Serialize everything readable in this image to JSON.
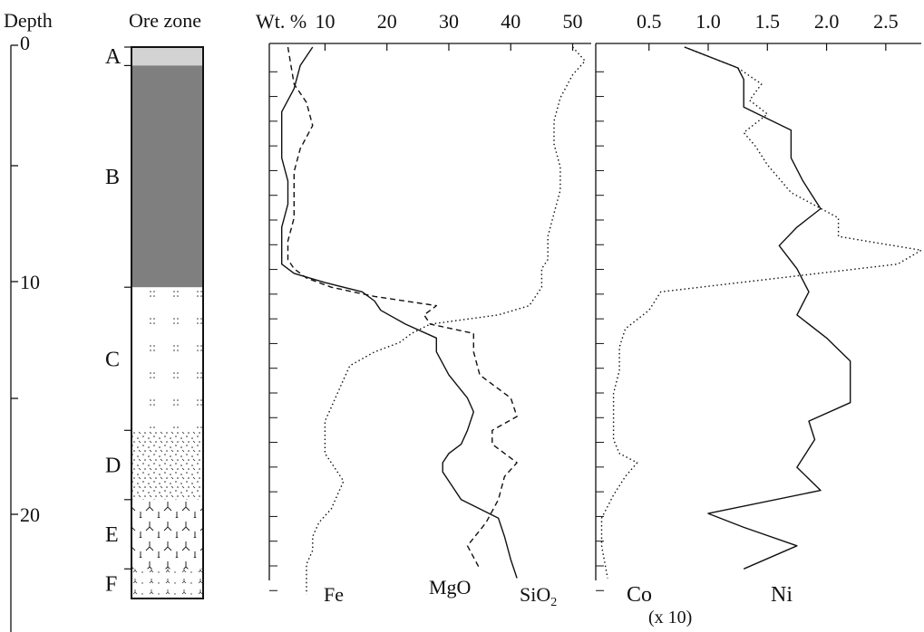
{
  "colors": {
    "ink": "#111111",
    "zone_a": "#d3d3d3",
    "zone_b": "#7f7f80",
    "background": "#ffffff"
  },
  "depth_axis": {
    "title": "Depth",
    "ticks": [
      "0",
      "10",
      "20"
    ]
  },
  "ore_zone": {
    "title": "Ore zone",
    "zones": [
      {
        "label": "A",
        "top": 0,
        "bottom": 0.8,
        "pattern": "light-gray"
      },
      {
        "label": "B",
        "top": 0.8,
        "bottom": 10.4,
        "pattern": "dark-gray"
      },
      {
        "label": "C",
        "top": 10.4,
        "bottom": 16.6,
        "pattern": "sparse-dots"
      },
      {
        "label": "D",
        "top": 16.6,
        "bottom": 19.6,
        "pattern": "dense-dots"
      },
      {
        "label": "E",
        "top": 19.6,
        "bottom": 22.6,
        "pattern": "chevrons"
      },
      {
        "label": "F",
        "top": 22.6,
        "bottom": 23.9,
        "pattern": "small-chevrons"
      }
    ]
  },
  "chart_data": [
    {
      "type": "line",
      "x_label": "Wt. %",
      "x_ticks": [
        "10",
        "20",
        "30",
        "40",
        "50"
      ],
      "xlim": [
        1,
        53
      ],
      "ylim": [
        0,
        23.9
      ],
      "series": [
        {
          "name": "Fe",
          "style": "dotted",
          "x": [
            50,
            52,
            50,
            48,
            47,
            47,
            48,
            48,
            47,
            46,
            46,
            45,
            45,
            45,
            44,
            43,
            38,
            27,
            24,
            22,
            18,
            14,
            13,
            12,
            11,
            10,
            10,
            10,
            10,
            11,
            12,
            13,
            12,
            11,
            9,
            8,
            8,
            7,
            7,
            7
          ],
          "y": [
            0,
            0.6,
            1.2,
            2.2,
            3.2,
            4.2,
            5.2,
            6.2,
            7.2,
            8.2,
            9.2,
            9.6,
            10.0,
            10.4,
            10.8,
            11.2,
            11.6,
            12.0,
            12.4,
            12.8,
            13.2,
            13.8,
            14.4,
            15.0,
            15.6,
            16.2,
            16.8,
            17.2,
            17.6,
            18.0,
            18.4,
            18.8,
            19.4,
            20.0,
            20.6,
            21.2,
            21.8,
            22.4,
            23.0,
            23.7
          ]
        },
        {
          "name": "MgO",
          "style": "dashed",
          "x": [
            4,
            5,
            7,
            8,
            6,
            5,
            5,
            5,
            4,
            4,
            5,
            7,
            11,
            18,
            28,
            26,
            27,
            34,
            34,
            35,
            40,
            41,
            37,
            37,
            41,
            39,
            38,
            36,
            33,
            35
          ],
          "y": [
            0,
            1.6,
            2.4,
            3.4,
            4.4,
            5.4,
            6.4,
            7.4,
            8.4,
            9.2,
            9.6,
            10.0,
            10.4,
            10.8,
            11.2,
            11.6,
            12.0,
            12.4,
            13.2,
            14.2,
            15.2,
            16.0,
            16.6,
            17.2,
            18.0,
            18.6,
            19.6,
            20.6,
            21.6,
            22.6
          ]
        },
        {
          "name": "SiO2",
          "style": "solid",
          "x": [
            8,
            6,
            5,
            3,
            3,
            3,
            4,
            4,
            3,
            3,
            3,
            3,
            5,
            10,
            16,
            18,
            19,
            23,
            28,
            28,
            30,
            33,
            34,
            33,
            32,
            30,
            29,
            29,
            30,
            32,
            38,
            39,
            40,
            41
          ],
          "y": [
            0,
            0.8,
            1.8,
            2.8,
            3.8,
            4.8,
            5.8,
            6.8,
            7.8,
            8.4,
            9.0,
            9.4,
            9.8,
            10.2,
            10.6,
            11.0,
            11.4,
            12.0,
            12.6,
            13.2,
            14.2,
            15.2,
            15.8,
            16.6,
            17.2,
            17.6,
            18.0,
            18.4,
            18.8,
            19.6,
            20.4,
            21.2,
            22.2,
            23.0
          ]
        }
      ]
    },
    {
      "type": "line",
      "x_label": "",
      "x_ticks": [
        "0.5",
        "1.0",
        "1.5",
        "2.0",
        "2.5"
      ],
      "xlim": [
        0.05,
        2.8
      ],
      "ylim": [
        0,
        23.9
      ],
      "series": [
        {
          "name": "Co (x 10)",
          "style": "dotted",
          "x": [
            0.8,
            1.25,
            1.45,
            1.35,
            1.5,
            1.3,
            1.4,
            1.5,
            1.7,
            2.1,
            2.1,
            2.8,
            2.6,
            1.6,
            0.6,
            0.5,
            0.3,
            0.25,
            0.25,
            0.2,
            0.2,
            0.2,
            0.25,
            0.4,
            0.3,
            0.2,
            0.1,
            0.1,
            0.15
          ],
          "y": [
            0,
            0.9,
            1.6,
            2.3,
            2.9,
            3.7,
            4.3,
            5.1,
            6.3,
            7.4,
            8.2,
            8.8,
            9.4,
            10.0,
            10.6,
            11.4,
            12.2,
            13.0,
            14.0,
            15.0,
            16.0,
            17.0,
            17.6,
            18.0,
            18.6,
            19.4,
            20.4,
            21.6,
            23.0
          ]
        },
        {
          "name": "Ni",
          "style": "solid",
          "x": [
            0.8,
            1.25,
            1.3,
            1.3,
            1.7,
            1.7,
            1.8,
            1.95,
            1.75,
            1.6,
            1.75,
            1.85,
            1.75,
            2.0,
            2.2,
            2.2,
            1.85,
            1.9,
            1.75,
            1.95,
            1.0,
            1.3,
            1.75,
            1.3
          ],
          "y": [
            0,
            0.9,
            1.4,
            2.6,
            3.6,
            4.8,
            5.8,
            7.0,
            7.8,
            8.6,
            9.6,
            10.6,
            11.6,
            12.6,
            13.6,
            15.4,
            16.2,
            17.0,
            18.2,
            19.2,
            20.2,
            20.8,
            21.6,
            22.6
          ]
        }
      ]
    }
  ],
  "labels": {
    "fe": "Fe",
    "mgo": "MgO",
    "sio2_main": "SiO",
    "sio2_sub": "2",
    "co": "Co",
    "co_note": "(x 10)",
    "ni": "Ni"
  }
}
